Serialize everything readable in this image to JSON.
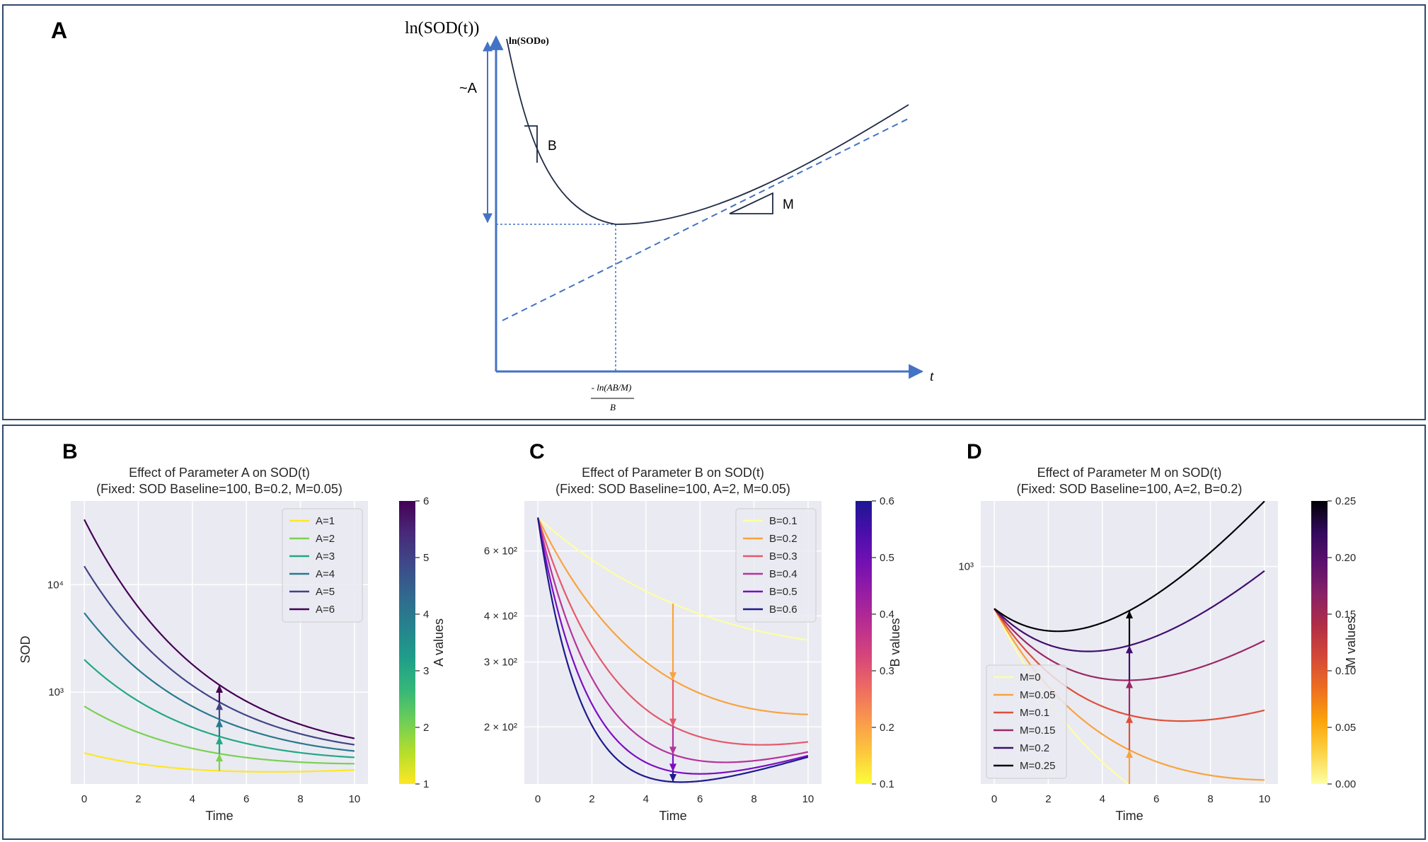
{
  "panelA": {
    "letter": "A",
    "y_axis_label": "ln(SOD(t))",
    "y0_label": "ln(SODo)",
    "a_label": "~A",
    "b_label": "B",
    "m_label": "M",
    "x_axis_label": "t",
    "xmin_label_top": "- ln(AB/M)",
    "xmin_label_bottom": "B"
  },
  "chart_data": [
    {
      "letter": "B",
      "type": "line",
      "title": "Effect of Parameter A on SOD(t)",
      "subtitle": "(Fixed: SOD Baseline=100, B=0.2, M=0.05)",
      "xlabel": "Time",
      "ylabel": "SOD",
      "yscale": "log",
      "xlim": [
        -0.5,
        10.5
      ],
      "ylim": [
        140,
        60000
      ],
      "x_ticks": [
        0,
        2,
        4,
        6,
        8,
        10
      ],
      "y_ticks": [
        {
          "value": 1000,
          "label": "10³"
        },
        {
          "value": 10000,
          "label": "10⁴"
        }
      ],
      "legend_position": "top-right",
      "param": "A",
      "fixed": {
        "S0": 100,
        "A": null,
        "B": 0.2,
        "M": 0.05
      },
      "series": [
        {
          "name": "A=1",
          "value": 1,
          "color": "#fde725"
        },
        {
          "name": "A=2",
          "value": 2,
          "color": "#7ad151"
        },
        {
          "name": "A=3",
          "value": 3,
          "color": "#22a884"
        },
        {
          "name": "A=4",
          "value": 4,
          "color": "#2a788e"
        },
        {
          "name": "A=5",
          "value": 5,
          "color": "#414487"
        },
        {
          "name": "A=6",
          "value": 6,
          "color": "#440154"
        }
      ],
      "arrow_time": 5,
      "arrow_direction": "up",
      "colorbar": {
        "label": "A values",
        "range": [
          1,
          6
        ],
        "ticks": [
          1,
          2,
          3,
          4,
          5,
          6
        ],
        "tick_labels": [
          "1",
          "2",
          "3",
          "4",
          "5",
          "6"
        ],
        "colors": [
          "#fde725",
          "#b5de2b",
          "#6ece58",
          "#35b779",
          "#1f9e89",
          "#26828e",
          "#31688e",
          "#3e4989",
          "#482878",
          "#440154"
        ]
      }
    },
    {
      "letter": "C",
      "type": "line",
      "title": "Effect of Parameter B on SOD(t)",
      "subtitle": "(Fixed: SOD Baseline=100, A=2, M=0.05)",
      "xlabel": "Time",
      "ylabel": "",
      "yscale": "log",
      "xlim": [
        -0.5,
        10.5
      ],
      "ylim": [
        140,
        820
      ],
      "x_ticks": [
        0,
        2,
        4,
        6,
        8,
        10
      ],
      "y_ticks": [
        {
          "value": 200,
          "label": "2 × 10²"
        },
        {
          "value": 300,
          "label": "3 × 10²"
        },
        {
          "value": 400,
          "label": "4 × 10²"
        },
        {
          "value": 600,
          "label": "6 × 10²"
        }
      ],
      "legend_position": "top-right",
      "param": "B",
      "fixed": {
        "S0": 100,
        "A": 2,
        "B": null,
        "M": 0.05
      },
      "series": [
        {
          "name": "B=0.1",
          "value": 0.1,
          "color": "#fcffa4"
        },
        {
          "name": "B=0.2",
          "value": 0.2,
          "color": "#f8a33e"
        },
        {
          "name": "B=0.3",
          "value": 0.3,
          "color": "#e35a6b"
        },
        {
          "name": "B=0.4",
          "value": 0.4,
          "color": "#b4359a"
        },
        {
          "name": "B=0.5",
          "value": 0.5,
          "color": "#7b0ec3"
        },
        {
          "name": "B=0.6",
          "value": 0.6,
          "color": "#1d1a8c"
        }
      ],
      "arrow_time": 5,
      "arrow_direction": "down",
      "colorbar": {
        "label": "B values",
        "range": [
          0.1,
          0.6
        ],
        "ticks": [
          0.1,
          0.2,
          0.3,
          0.4,
          0.5,
          0.6
        ],
        "tick_labels": [
          "0.1",
          "0.2",
          "0.3",
          "0.4",
          "0.5",
          "0.6"
        ],
        "colors": [
          "#fcfd3a",
          "#fcc83c",
          "#f99a4c",
          "#ee6d61",
          "#d84879",
          "#bb2f8e",
          "#9a1ea2",
          "#7411b2",
          "#4a0eab",
          "#1c1792"
        ]
      }
    },
    {
      "letter": "D",
      "type": "line",
      "title": "Effect of Parameter M on SOD(t)",
      "subtitle": "(Fixed: SOD Baseline=100, A=2, B=0.2)",
      "xlabel": "Time",
      "ylabel": "",
      "yscale": "log",
      "xlim": [
        -0.5,
        10.5
      ],
      "ylim": [
        210,
        1600
      ],
      "x_ticks": [
        0,
        2,
        4,
        6,
        8,
        10
      ],
      "y_ticks": [
        {
          "value": 1000,
          "label": "10³"
        }
      ],
      "legend_position": "lower-left",
      "param": "M",
      "fixed": {
        "S0": 100,
        "A": 2,
        "B": 0.2,
        "M": null
      },
      "series": [
        {
          "name": "M=0",
          "value": 0,
          "color": "#fcffa4"
        },
        {
          "name": "M=0.05",
          "value": 0.05,
          "color": "#f8a33e"
        },
        {
          "name": "M=0.1",
          "value": 0.1,
          "color": "#dd513a"
        },
        {
          "name": "M=0.15",
          "value": 0.15,
          "color": "#9a2865"
        },
        {
          "name": "M=0.2",
          "value": 0.2,
          "color": "#3f0f6e"
        },
        {
          "name": "M=0.25",
          "value": 0.25,
          "color": "#000004"
        }
      ],
      "arrow_time": 5,
      "arrow_direction": "up",
      "colorbar": {
        "label": "M values",
        "range": [
          0,
          0.25
        ],
        "ticks": [
          0,
          0.05,
          0.1,
          0.15,
          0.2,
          0.25
        ],
        "tick_labels": [
          "0.00",
          "0.05",
          "0.10",
          "0.15",
          "0.20",
          "0.25"
        ],
        "colors": [
          "#fcffa4",
          "#fcd346",
          "#fba40a",
          "#ee7021",
          "#d54a37",
          "#b22f45",
          "#8a2266",
          "#5d126e",
          "#320a5e",
          "#000004"
        ]
      }
    }
  ]
}
